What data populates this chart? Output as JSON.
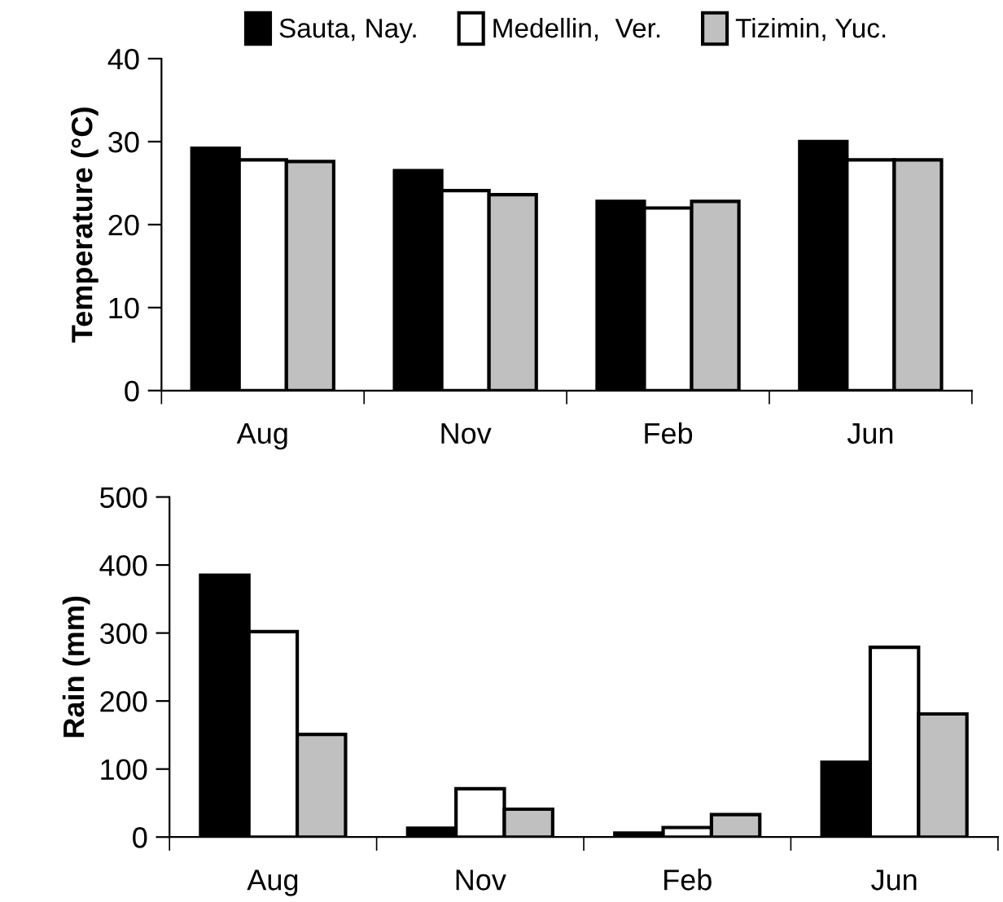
{
  "chart_data": [
    {
      "type": "bar",
      "ylabel": "Temperature (°C)",
      "categories": [
        "Aug",
        "Nov",
        "Feb",
        "Jun"
      ],
      "ylim": [
        0,
        40
      ],
      "yticks": [
        0,
        10,
        20,
        30,
        40
      ],
      "grid": false,
      "legend": "top",
      "series": [
        {
          "name": "Sauta, Nay.",
          "color": "#000000",
          "values": [
            29.2,
            26.5,
            22.8,
            30.0
          ]
        },
        {
          "name": "Medellin,  Ver.",
          "color": "#ffffff",
          "values": [
            27.8,
            24.1,
            22.0,
            27.8
          ]
        },
        {
          "name": "Tizimin, Yuc.",
          "color": "#c0c0c0",
          "values": [
            27.6,
            23.6,
            22.8,
            27.8
          ]
        }
      ]
    },
    {
      "type": "bar",
      "ylabel": "Rain (mm)",
      "categories": [
        "Aug",
        "Nov",
        "Feb",
        "Jun"
      ],
      "ylim": [
        0,
        500
      ],
      "yticks": [
        0,
        100,
        200,
        300,
        400,
        500
      ],
      "grid": false,
      "legend": false,
      "series": [
        {
          "color": "#000000",
          "values": [
            385,
            13,
            6,
            110
          ]
        },
        {
          "color": "#ffffff",
          "values": [
            302,
            71,
            14,
            279
          ]
        },
        {
          "color": "#c0c0c0",
          "values": [
            151,
            41,
            33,
            181
          ]
        }
      ]
    }
  ]
}
